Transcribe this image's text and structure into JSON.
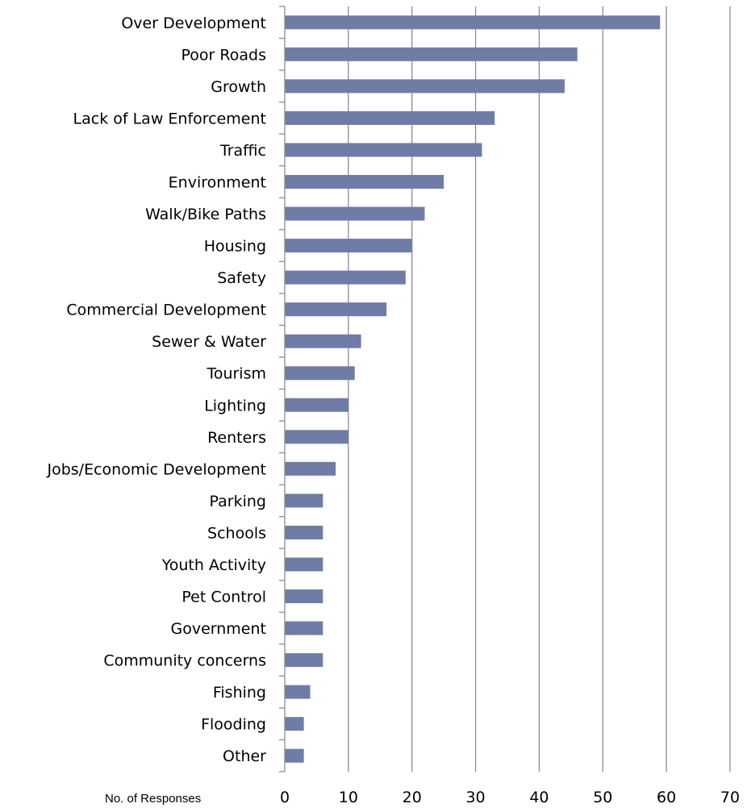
{
  "chart_data": {
    "type": "bar",
    "orientation": "horizontal",
    "categories": [
      "Over Development",
      "Poor Roads",
      "Growth",
      "Lack of Law Enforcement",
      "Traffic",
      "Environment",
      "Walk/Bike Paths",
      "Housing",
      "Safety",
      "Commercial Development",
      "Sewer & Water",
      "Tourism",
      "Lighting",
      "Renters",
      "Jobs/Economic Development",
      "Parking",
      "Schools",
      "Youth Activity",
      "Pet Control",
      "Government",
      "Community concerns",
      "Fishing",
      "Flooding",
      "Other"
    ],
    "values": [
      59,
      46,
      44,
      33,
      31,
      25,
      22,
      20,
      19,
      16,
      12,
      11,
      10,
      10,
      8,
      6,
      6,
      6,
      6,
      6,
      6,
      4,
      3,
      3
    ],
    "title": "",
    "xlabel": "No. of  Responses",
    "ylabel": "",
    "xlim": [
      0,
      70
    ],
    "xticks": [
      0,
      10,
      20,
      30,
      40,
      50,
      60,
      70
    ],
    "xtick_labels": [
      "0",
      "10",
      "20",
      "30",
      "40",
      "50",
      "60",
      "70"
    ],
    "grid": "vertical",
    "legend": "none",
    "bar_color": "#6f7ca6",
    "gridline_color": "#8c8c8c",
    "axis_color": "#8c8c8c"
  }
}
